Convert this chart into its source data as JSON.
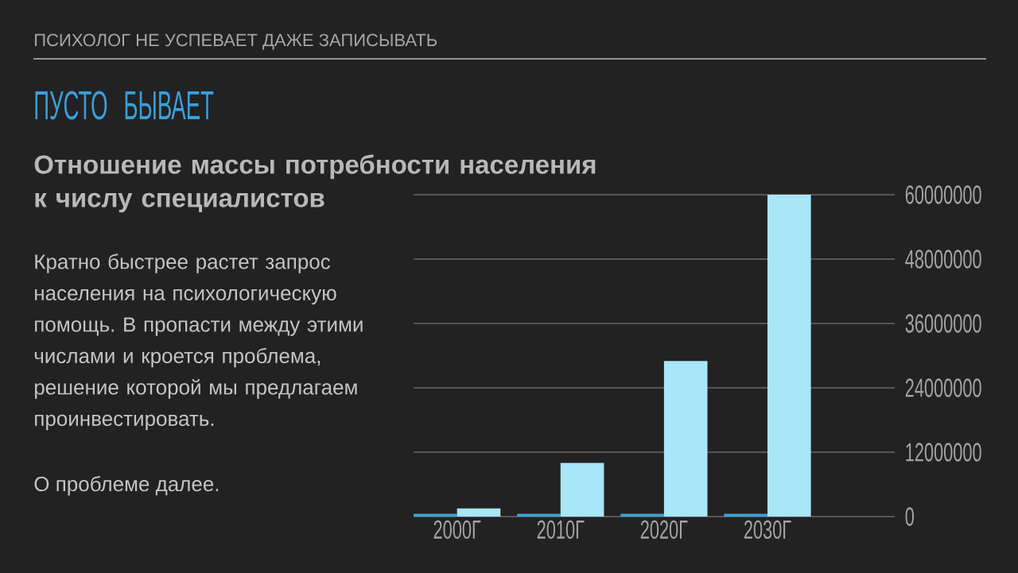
{
  "chart_data": {
    "type": "bar",
    "title": "Отношение массы потребности населения к числу специалистов",
    "annotations": [
      "ПСИХОЛОГ НЕ УСПЕВАЕТ ДАЖЕ ЗАПИСЫВАТЬ",
      "ПУСТО БЫВАЕТ",
      "Кратно быстрее растет запрос населения на психологическую помощь. В пропасти между этими числами и кроется проблема, решение которой мы предлагаем проинвестировать.",
      "О проблеме далее."
    ],
    "categories": [
      "2000Г",
      "2010Г",
      "2020Г",
      "2030Г"
    ],
    "series": [
      {
        "color": "#3aa3dc",
        "values": [
          500000,
          500000,
          500000,
          500000
        ]
      },
      {
        "color": "#a9e6f8",
        "values": [
          1500000,
          10000000,
          29000000,
          60000000
        ]
      }
    ],
    "ylim": [
      0,
      60000000
    ],
    "yticks": [
      0,
      12000000,
      24000000,
      36000000,
      48000000,
      60000000
    ],
    "grid": "y"
  }
}
